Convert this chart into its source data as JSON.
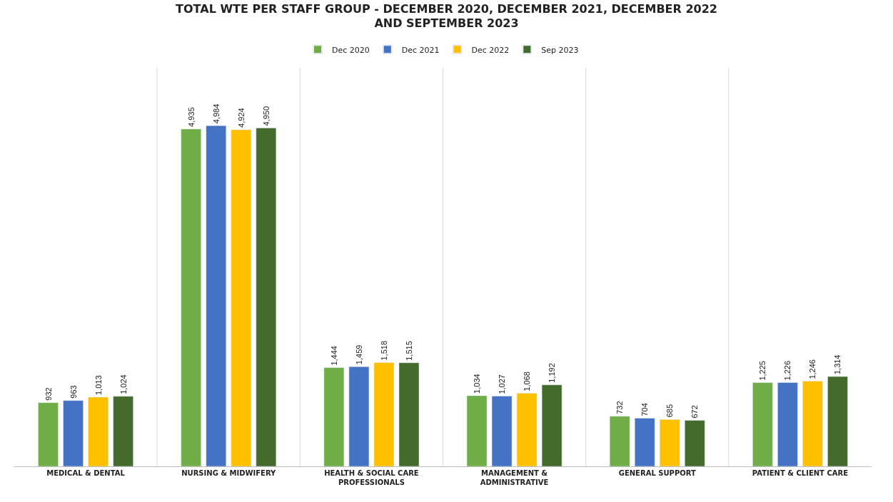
{
  "chart_data": {
    "type": "bar",
    "title": "TOTAL WTE PER STAFF GROUP - DECEMBER 2020, DECEMBER 2021, DECEMBER 2022 AND SEPTEMBER 2023",
    "categories": [
      "MEDICAL & DENTAL",
      "NURSING & MIDWIFERY",
      "HEALTH & SOCIAL CARE PROFESSIONALS",
      "MANAGEMENT & ADMINISTRATIVE",
      "GENERAL SUPPORT",
      "PATIENT & CLIENT CARE"
    ],
    "series": [
      {
        "name": "Dec 2020",
        "color": "#70ad47",
        "values": [
          932,
          4935,
          1444,
          1034,
          732,
          1225
        ],
        "value_labels": [
          "932",
          "4,935",
          "1,444",
          "1,034",
          "732",
          "1,225"
        ]
      },
      {
        "name": "Dec 2021",
        "color": "#4472c4",
        "values": [
          963,
          4984,
          1459,
          1027,
          704,
          1226
        ],
        "value_labels": [
          "963",
          "4,984",
          "1,459",
          "1,027",
          "704",
          "1,226"
        ]
      },
      {
        "name": "Dec 2022",
        "color": "#ffc000",
        "values": [
          1013,
          4924,
          1518,
          1068,
          685,
          1246
        ],
        "value_labels": [
          "1,013",
          "4,924",
          "1,518",
          "1,068",
          "685",
          "1,246"
        ]
      },
      {
        "name": "Sep 2023",
        "color": "#446a2c",
        "values": [
          1024,
          4950,
          1515,
          1192,
          672,
          1314
        ],
        "value_labels": [
          "1,024",
          "4,950",
          "1,515",
          "1,192",
          "672",
          "1,314"
        ]
      }
    ],
    "legend": "top"
  }
}
